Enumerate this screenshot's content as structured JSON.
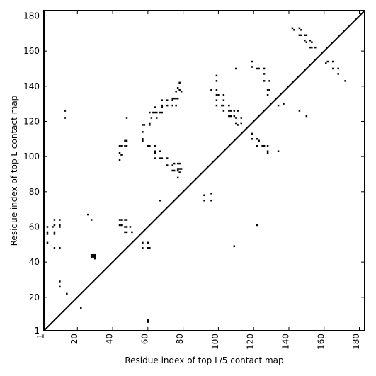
{
  "chart_data": {
    "type": "scatter",
    "title": "",
    "xlabel": "Residue index of top L/5 contact map",
    "ylabel": "Residue index of top L contact map",
    "xlim": [
      1,
      183
    ],
    "ylim": [
      1,
      183
    ],
    "xticks": [
      1,
      20,
      40,
      60,
      80,
      100,
      120,
      140,
      160,
      180
    ],
    "yticks": [
      1,
      20,
      40,
      60,
      80,
      100,
      120,
      140,
      160,
      180
    ],
    "grid": false,
    "legend": "none",
    "diagonal_line": true,
    "marker": "square",
    "marker_color": "#000000",
    "series": [
      {
        "upper_triangle_points": [
          [
            142,
            173
          ],
          [
            143,
            172
          ],
          [
            146,
            173
          ],
          [
            147,
            172
          ],
          [
            146,
            169
          ],
          [
            147,
            169
          ],
          [
            149,
            169
          ],
          [
            150,
            169
          ],
          [
            149,
            166
          ],
          [
            150,
            165
          ],
          [
            152,
            166
          ],
          [
            153,
            165
          ],
          [
            152,
            162
          ],
          [
            153,
            162
          ],
          [
            155,
            162
          ],
          [
            161,
            153
          ],
          [
            162,
            154
          ],
          [
            165,
            154
          ],
          [
            165,
            150
          ],
          [
            168,
            150
          ],
          [
            168,
            147
          ],
          [
            172,
            143
          ],
          [
            119,
            154
          ],
          [
            119,
            151
          ],
          [
            122,
            150
          ],
          [
            123,
            150
          ],
          [
            126,
            150
          ],
          [
            126,
            147
          ],
          [
            126,
            143
          ],
          [
            129,
            143
          ],
          [
            128,
            138
          ],
          [
            129,
            138
          ],
          [
            128,
            135
          ],
          [
            134,
            129
          ],
          [
            137,
            130
          ],
          [
            99,
            146
          ],
          [
            99,
            143
          ],
          [
            96,
            138
          ],
          [
            99,
            138
          ],
          [
            99,
            135
          ],
          [
            100,
            135
          ],
          [
            103,
            135
          ],
          [
            99,
            132
          ],
          [
            103,
            132
          ],
          [
            99,
            129
          ],
          [
            102,
            129
          ],
          [
            103,
            129
          ],
          [
            106,
            129
          ],
          [
            103,
            126
          ],
          [
            106,
            126
          ],
          [
            107,
            126
          ],
          [
            109,
            126
          ],
          [
            111,
            126
          ],
          [
            106,
            123
          ],
          [
            107,
            123
          ],
          [
            109,
            123
          ],
          [
            110,
            122
          ],
          [
            113,
            122
          ],
          [
            110,
            119
          ],
          [
            111,
            118
          ],
          [
            113,
            119
          ],
          [
            110,
            150
          ],
          [
            119,
            113
          ],
          [
            119,
            110
          ],
          [
            122,
            110
          ],
          [
            123,
            109
          ],
          [
            122,
            106
          ],
          [
            125,
            106
          ],
          [
            126,
            106
          ],
          [
            128,
            106
          ],
          [
            128,
            103
          ],
          [
            128,
            102
          ],
          [
            134,
            103
          ],
          [
            146,
            126
          ],
          [
            150,
            123
          ],
          [
            122,
            61
          ],
          [
            109,
            49
          ],
          [
            78,
            142
          ],
          [
            77,
            139
          ],
          [
            78,
            138
          ],
          [
            76,
            137
          ],
          [
            79,
            137
          ],
          [
            74,
            133
          ],
          [
            75,
            133
          ],
          [
            76,
            133
          ],
          [
            77,
            133
          ],
          [
            74,
            132
          ],
          [
            68,
            132
          ],
          [
            71,
            132
          ],
          [
            68,
            129
          ],
          [
            68,
            128
          ],
          [
            71,
            129
          ],
          [
            74,
            129
          ],
          [
            76,
            129
          ],
          [
            61,
            125
          ],
          [
            63,
            125
          ],
          [
            64,
            125
          ],
          [
            65,
            125
          ],
          [
            67,
            125
          ],
          [
            68,
            125
          ],
          [
            64,
            128
          ],
          [
            65,
            122
          ],
          [
            62,
            122
          ],
          [
            61,
            119
          ],
          [
            57,
            118
          ],
          [
            58,
            118
          ],
          [
            61,
            118
          ],
          [
            57,
            114
          ],
          [
            57,
            110
          ],
          [
            57,
            109
          ],
          [
            60,
            106
          ],
          [
            61,
            106
          ],
          [
            64,
            106
          ],
          [
            64,
            103
          ],
          [
            64,
            102
          ],
          [
            67,
            103
          ],
          [
            67,
            99
          ],
          [
            68,
            99
          ],
          [
            71,
            99
          ],
          [
            64,
            99
          ],
          [
            71,
            95
          ],
          [
            74,
            95
          ],
          [
            75,
            96
          ],
          [
            74,
            92
          ],
          [
            75,
            92
          ],
          [
            77,
            96
          ],
          [
            78,
            96
          ],
          [
            77,
            93
          ],
          [
            78,
            93
          ],
          [
            79,
            93
          ],
          [
            77,
            92
          ],
          [
            78,
            91
          ],
          [
            77,
            88
          ],
          [
            67,
            75
          ],
          [
            92,
            78
          ],
          [
            96,
            79
          ],
          [
            92,
            75
          ],
          [
            96,
            75
          ],
          [
            44,
            106
          ],
          [
            45,
            106
          ],
          [
            47,
            106
          ],
          [
            48,
            106
          ],
          [
            47,
            109
          ],
          [
            48,
            109
          ],
          [
            44,
            102
          ],
          [
            45,
            101
          ],
          [
            44,
            98
          ],
          [
            44,
            64
          ],
          [
            45,
            64
          ],
          [
            47,
            64
          ],
          [
            48,
            64
          ],
          [
            44,
            61
          ],
          [
            45,
            61
          ],
          [
            47,
            60
          ],
          [
            48,
            60
          ],
          [
            47,
            57
          ],
          [
            48,
            57
          ],
          [
            50,
            60
          ],
          [
            51,
            57
          ],
          [
            48,
            122
          ],
          [
            28,
            64
          ],
          [
            26,
            67
          ],
          [
            28,
            44
          ],
          [
            29,
            44
          ],
          [
            30,
            44
          ],
          [
            28,
            43
          ],
          [
            30,
            43
          ],
          [
            30,
            42
          ],
          [
            29,
            43
          ],
          [
            57,
            51
          ],
          [
            60,
            51
          ],
          [
            57,
            48
          ],
          [
            60,
            48
          ],
          [
            61,
            48
          ],
          [
            60,
            6
          ],
          [
            60,
            7
          ],
          [
            3,
            60
          ],
          [
            3,
            57
          ],
          [
            3,
            56
          ],
          [
            6,
            60
          ],
          [
            7,
            61
          ],
          [
            7,
            64
          ],
          [
            7,
            57
          ],
          [
            7,
            56
          ],
          [
            7,
            48
          ],
          [
            10,
            64
          ],
          [
            10,
            61
          ],
          [
            10,
            60
          ],
          [
            10,
            48
          ],
          [
            10,
            29
          ],
          [
            10,
            26
          ],
          [
            13,
            126
          ],
          [
            13,
            122
          ],
          [
            3,
            51
          ],
          [
            14,
            22
          ],
          [
            22,
            14
          ]
        ]
      }
    ]
  }
}
